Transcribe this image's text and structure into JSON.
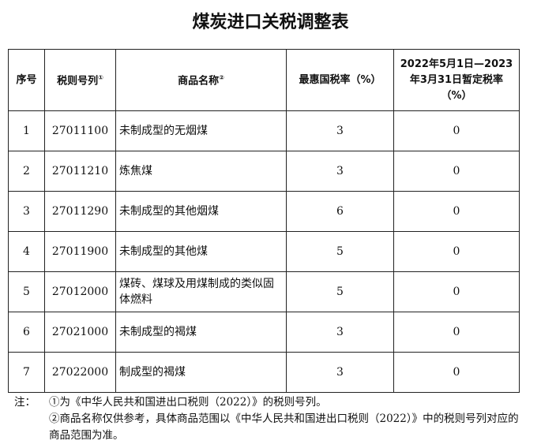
{
  "title": "煤炭进口关税调整表",
  "headers": {
    "seq": "序号",
    "code": "税则号列",
    "code_sup": "①",
    "name": "商品名称",
    "name_sup": "②",
    "mfn": "最惠国税率（%）",
    "temp": "2022年5月1日—2023年3月31日暂定税率（%）"
  },
  "rows": [
    {
      "seq": "1",
      "code": "27011100",
      "name": "未制成型的无烟煤",
      "mfn": "3",
      "temp": "0"
    },
    {
      "seq": "2",
      "code": "27011210",
      "name": "炼焦煤",
      "mfn": "3",
      "temp": "0"
    },
    {
      "seq": "3",
      "code": "27011290",
      "name": "未制成型的其他烟煤",
      "mfn": "6",
      "temp": "0"
    },
    {
      "seq": "4",
      "code": "27011900",
      "name": "未制成型的其他煤",
      "mfn": "5",
      "temp": "0"
    },
    {
      "seq": "5",
      "code": "27012000",
      "name": "煤砖、煤球及用煤制成的类似固体燃料",
      "mfn": "5",
      "temp": "0"
    },
    {
      "seq": "6",
      "code": "27021000",
      "name": "未制成型的褐煤",
      "mfn": "3",
      "temp": "0"
    },
    {
      "seq": "7",
      "code": "27022000",
      "name": "制成型的褐煤",
      "mfn": "3",
      "temp": "0"
    }
  ],
  "notes": {
    "label": "注：",
    "items": [
      "①为《中华人民共和国进出口税则（2022）》的税则号列。",
      "②商品名称仅供参考，具体商品范围以《中华人民共和国进出口税则（2022）》中的税则号列对应的商品范围为准。"
    ]
  }
}
